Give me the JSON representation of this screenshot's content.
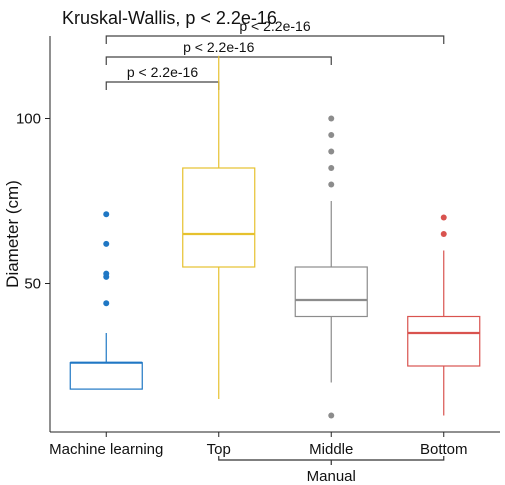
{
  "chart_data": {
    "type": "box",
    "title": "Kruskal-Wallis, p < 2.2e-16",
    "xlabel": "",
    "ylabel": "Diameter (cm)",
    "ylim": [
      5,
      125
    ],
    "yticks": [
      50,
      100
    ],
    "grid": false,
    "categories": [
      "Machine learning",
      "Top",
      "Middle",
      "Bottom"
    ],
    "group_label": {
      "text": "Manual",
      "categories": [
        "Top",
        "Middle",
        "Bottom"
      ]
    },
    "colors": [
      "#1f77c4",
      "#e6c12e",
      "#8c8c8c",
      "#d9534f"
    ],
    "boxes": [
      {
        "name": "Machine learning",
        "whisker_low": 18,
        "q1": 18,
        "median": 26,
        "q3": 26,
        "whisker_high": 35,
        "outliers": [
          44,
          52,
          53,
          62,
          71
        ]
      },
      {
        "name": "Top",
        "whisker_low": 15,
        "q1": 55,
        "median": 65,
        "q3": 85,
        "whisker_high": 119,
        "outliers": []
      },
      {
        "name": "Middle",
        "whisker_low": 20,
        "q1": 40,
        "median": 45,
        "q3": 55,
        "whisker_high": 75,
        "outliers": [
          10,
          80,
          85,
          90,
          95,
          100
        ]
      },
      {
        "name": "Bottom",
        "whisker_low": 10,
        "q1": 25,
        "median": 35,
        "q3": 40,
        "whisker_high": 60,
        "outliers": [
          65,
          70
        ]
      }
    ],
    "comparisons": [
      {
        "from": "Machine learning",
        "to": "Top",
        "label": "p < 2.2e-16"
      },
      {
        "from": "Machine learning",
        "to": "Middle",
        "label": "p < 2.2e-16"
      },
      {
        "from": "Machine learning",
        "to": "Bottom",
        "label": "p < 2.2e-16"
      }
    ]
  }
}
